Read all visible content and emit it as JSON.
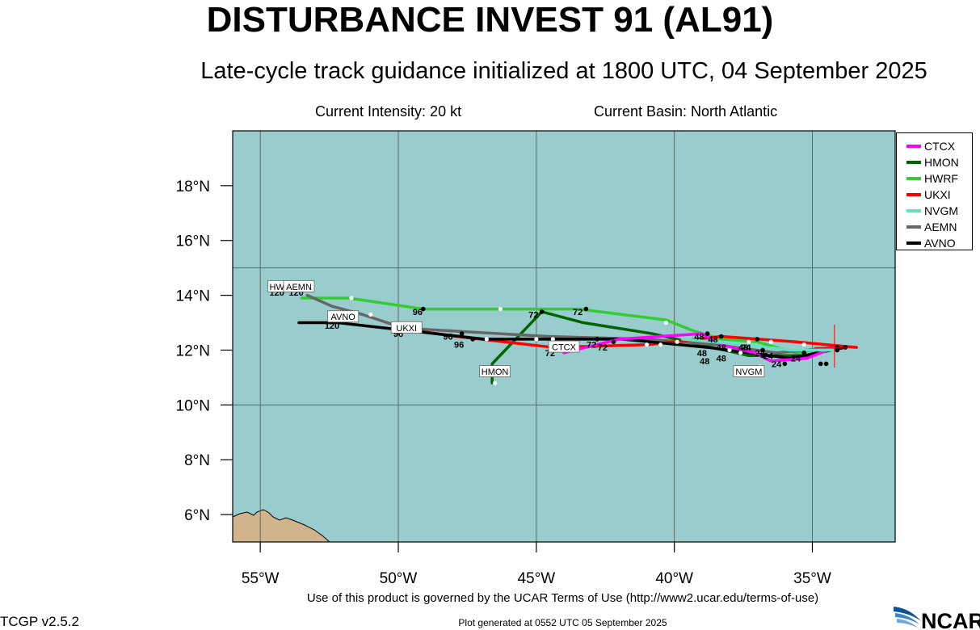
{
  "header": {
    "title": "DISTURBANCE INVEST 91 (AL91)",
    "subtitle": "Late-cycle track guidance initialized at 1800 UTC, 04 September 2025",
    "intensity": "Current Intensity: 20 kt",
    "basin": "Current Basin: North Atlantic"
  },
  "map": {
    "lon_range": [
      -56,
      -32
    ],
    "lat_range": [
      5,
      20
    ],
    "lon_ticks": [
      {
        "value": -55,
        "label": "55°W"
      },
      {
        "value": -50,
        "label": "50°W"
      },
      {
        "value": -45,
        "label": "45°W"
      },
      {
        "value": -40,
        "label": "40°W"
      },
      {
        "value": -35,
        "label": "35°W"
      }
    ],
    "lat_ticks": [
      {
        "value": 18,
        "label": "18°N"
      },
      {
        "value": 16,
        "label": "16°N"
      },
      {
        "value": 14,
        "label": "14°N"
      },
      {
        "value": 12,
        "label": "12°N"
      },
      {
        "value": 10,
        "label": "10°N"
      },
      {
        "value": 8,
        "label": "8°N"
      },
      {
        "value": 6,
        "label": "6°N"
      }
    ],
    "grid_lons": [
      -55,
      -50,
      -45,
      -40,
      -35
    ],
    "grid_lats": [
      15,
      10,
      5
    ],
    "ocean_color": "#99cccc",
    "land_color": "#d2b48c",
    "current_position": {
      "lon": -34.2,
      "lat": 12.1
    }
  },
  "legend": [
    {
      "name": "CTCX",
      "color": "#ff00ff"
    },
    {
      "name": "HMON",
      "color": "#006400"
    },
    {
      "name": "HWRF",
      "color": "#33cc33"
    },
    {
      "name": "UKXI",
      "color": "#ff0000"
    },
    {
      "name": "NVGM",
      "color": "#66e0c2"
    },
    {
      "name": "AEMN",
      "color": "#666666"
    },
    {
      "name": "AVNO",
      "color": "#000000"
    }
  ],
  "tracks": [
    {
      "model": "HWRF",
      "color": "#33cc33",
      "points": [
        [
          -34.2,
          12.1
        ],
        [
          -35.6,
          11.9
        ],
        [
          -37.0,
          12.3
        ],
        [
          -38.3,
          12.4
        ],
        [
          -39.3,
          12.7
        ],
        [
          -40.3,
          13.1
        ],
        [
          -43.5,
          13.5
        ],
        [
          -46.3,
          13.5
        ],
        [
          -49.1,
          13.5
        ],
        [
          -51.8,
          13.9
        ],
        [
          -53.5,
          13.9
        ]
      ]
    },
    {
      "model": "HMON",
      "color": "#006400",
      "points": [
        [
          -34.2,
          12.1
        ],
        [
          -35.2,
          11.8
        ],
        [
          -37.3,
          11.8
        ],
        [
          -38.2,
          12.0
        ],
        [
          -40.8,
          12.6
        ],
        [
          -43.3,
          13.0
        ],
        [
          -44.8,
          13.4
        ],
        [
          -46.6,
          11.5
        ],
        [
          -46.6,
          10.8
        ]
      ]
    },
    {
      "model": "AEMN",
      "color": "#666666",
      "points": [
        [
          -34.2,
          12.1
        ],
        [
          -36.3,
          11.9
        ],
        [
          -38.5,
          12.2
        ],
        [
          -41.0,
          12.4
        ],
        [
          -44.6,
          12.5
        ],
        [
          -49.8,
          12.8
        ],
        [
          -51.3,
          13.3
        ],
        [
          -52.4,
          13.6
        ],
        [
          -53.3,
          14.0
        ]
      ]
    },
    {
      "model": "UKXI",
      "color": "#ff0000",
      "points": [
        [
          -33.4,
          12.1
        ],
        [
          -35.6,
          12.3
        ],
        [
          -38.3,
          12.5
        ],
        [
          -40.9,
          12.2
        ],
        [
          -44.4,
          12.1
        ],
        [
          -47.9,
          12.5
        ],
        [
          -50.0,
          12.8
        ]
      ]
    },
    {
      "model": "AVNO",
      "color": "#000000",
      "points": [
        [
          -33.8,
          12.1
        ],
        [
          -35.8,
          11.7
        ],
        [
          -38.8,
          12.1
        ],
        [
          -41.9,
          12.4
        ],
        [
          -46.9,
          12.4
        ],
        [
          -52.2,
          13.0
        ],
        [
          -53.6,
          13.0
        ]
      ]
    },
    {
      "model": "CTCX",
      "color": "#ff00ff",
      "points": [
        [
          -34.2,
          12.1
        ],
        [
          -35.2,
          11.7
        ],
        [
          -36.5,
          11.6
        ],
        [
          -37.1,
          11.9
        ],
        [
          -38.3,
          12.2
        ],
        [
          -39.0,
          12.6
        ],
        [
          -42.0,
          12.4
        ],
        [
          -44.0,
          11.9
        ]
      ]
    },
    {
      "model": "NVGM",
      "color": "#66e0c2",
      "points": [
        [
          -34.2,
          12.0
        ],
        [
          -35.8,
          12.0
        ],
        [
          -37.5,
          12.2
        ],
        [
          -39.7,
          12.4
        ]
      ]
    }
  ],
  "model_labels": [
    {
      "text": "HW",
      "lon": -54.4,
      "lat": 14.3
    },
    {
      "text": "AEMN",
      "lon": -53.6,
      "lat": 14.3
    },
    {
      "text": "AVNO",
      "lon": -52.0,
      "lat": 13.2
    },
    {
      "text": "UKXI",
      "lon": -49.7,
      "lat": 12.8
    },
    {
      "text": "CTCX",
      "lon": -44.0,
      "lat": 12.1
    },
    {
      "text": "HMON",
      "lon": -46.5,
      "lat": 11.2
    },
    {
      "text": "NVGM",
      "lon": -37.3,
      "lat": 11.2
    }
  ],
  "hour_labels": [
    {
      "text": "120",
      "lon": -54.4,
      "lat": 14.1
    },
    {
      "text": "120",
      "lon": -53.7,
      "lat": 14.1
    },
    {
      "text": "120",
      "lon": -52.4,
      "lat": 12.9
    },
    {
      "text": "96",
      "lon": -49.3,
      "lat": 13.4
    },
    {
      "text": "96",
      "lon": -50.0,
      "lat": 12.6
    },
    {
      "text": "96",
      "lon": -48.2,
      "lat": 12.5
    },
    {
      "text": "96",
      "lon": -47.8,
      "lat": 12.2
    },
    {
      "text": "72",
      "lon": -45.1,
      "lat": 13.3
    },
    {
      "text": "72",
      "lon": -43.5,
      "lat": 13.4
    },
    {
      "text": "72",
      "lon": -44.5,
      "lat": 11.9
    },
    {
      "text": "72",
      "lon": -43.0,
      "lat": 12.2
    },
    {
      "text": "72",
      "lon": -42.6,
      "lat": 12.1
    },
    {
      "text": "48",
      "lon": -39.1,
      "lat": 12.5
    },
    {
      "text": "48",
      "lon": -38.6,
      "lat": 12.4
    },
    {
      "text": "48",
      "lon": -38.3,
      "lat": 12.1
    },
    {
      "text": "48",
      "lon": -37.5,
      "lat": 12.1
    },
    {
      "text": "48",
      "lon": -39.0,
      "lat": 11.9
    },
    {
      "text": "48",
      "lon": -38.9,
      "lat": 11.6
    },
    {
      "text": "48",
      "lon": -38.3,
      "lat": 11.7
    },
    {
      "text": "24",
      "lon": -37.4,
      "lat": 12.1
    },
    {
      "text": "24",
      "lon": -36.9,
      "lat": 11.9
    },
    {
      "text": "24",
      "lon": -36.6,
      "lat": 11.8
    },
    {
      "text": "24",
      "lon": -36.3,
      "lat": 11.5
    },
    {
      "text": "24",
      "lon": -35.6,
      "lat": 11.7
    }
  ],
  "white_markers": [
    [
      -51.7,
      13.9
    ],
    [
      -46.3,
      13.5
    ],
    [
      -40.3,
      13.0
    ],
    [
      -51.0,
      13.3
    ],
    [
      -46.8,
      12.4
    ],
    [
      -45.0,
      12.4
    ],
    [
      -44.4,
      12.4
    ],
    [
      -41.0,
      12.2
    ],
    [
      -40.5,
      12.2
    ],
    [
      -39.9,
      12.3
    ],
    [
      -49.9,
      12.6
    ],
    [
      -46.5,
      10.8
    ],
    [
      -37.3,
      12.3
    ],
    [
      -36.5,
      12.3
    ],
    [
      -35.3,
      12.2
    ],
    [
      -37.6,
      11.9
    ],
    [
      -36.9,
      11.4
    ],
    [
      -38.0,
      12.0
    ]
  ],
  "black_markers": [
    [
      -49.1,
      13.5
    ],
    [
      -44.8,
      13.4
    ],
    [
      -43.2,
      13.5
    ],
    [
      -47.7,
      12.6
    ],
    [
      -47.3,
      12.4
    ],
    [
      -42.8,
      12.4
    ],
    [
      -42.2,
      12.3
    ],
    [
      -38.8,
      12.6
    ],
    [
      -38.3,
      12.5
    ],
    [
      -37.0,
      12.4
    ],
    [
      -36.0,
      11.5
    ],
    [
      -34.7,
      11.5
    ],
    [
      -34.5,
      11.5
    ],
    [
      -34.1,
      12.0
    ],
    [
      -34.1,
      12.1
    ],
    [
      -33.8,
      12.1
    ],
    [
      -36.8,
      12.0
    ],
    [
      -36.8,
      11.8
    ],
    [
      -35.3,
      11.9
    ]
  ],
  "footer": {
    "terms": "Use of this product is governed by the UCAR Terms of Use (http://www2.ucar.edu/terms-of-use)",
    "plot_time": "Plot generated at 0552 UTC   05 September 2025",
    "version": "TCGP v2.5.2",
    "logo_text": "NCAR"
  }
}
